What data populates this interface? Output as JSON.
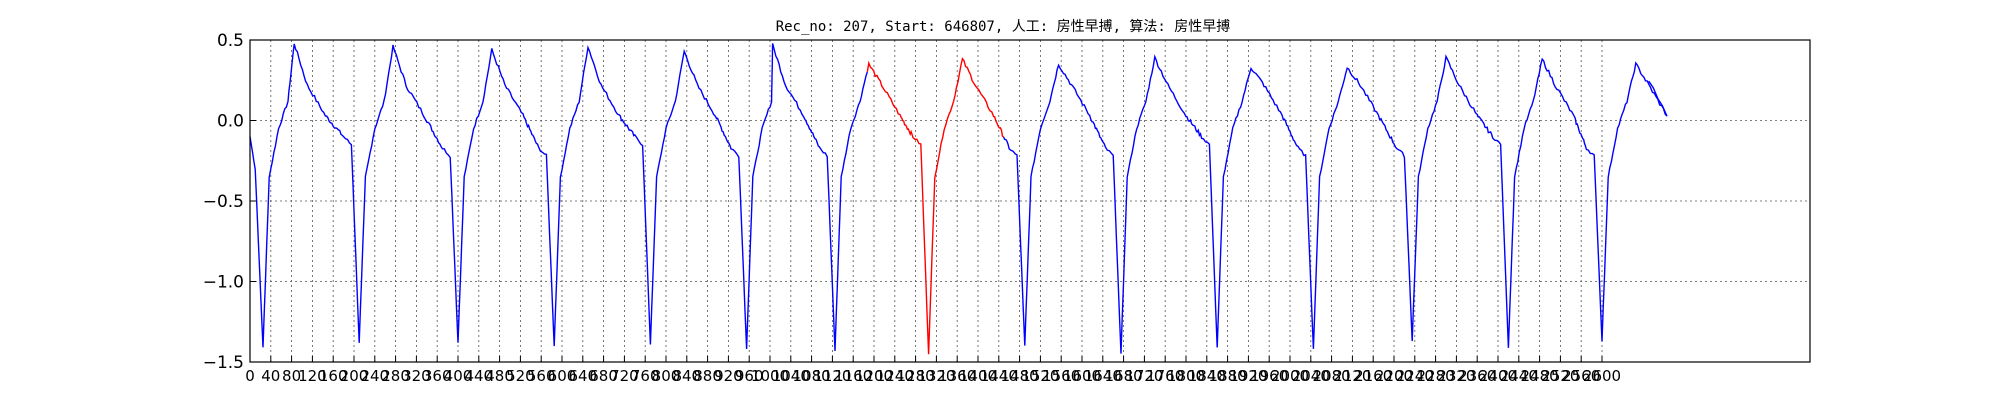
{
  "chart_data": {
    "type": "line",
    "title": "Rec_no: 207, Start: 646807, 人工: 房性早搏, 算法: 房性早搏",
    "xlabel": "",
    "ylabel": "",
    "xlim": [
      0,
      3000
    ],
    "ylim": [
      -1.5,
      0.5
    ],
    "grid": true,
    "y_ticks": [
      "0.5",
      "0.0",
      "−0.5",
      "−1.0",
      "−1.5"
    ],
    "y_tick_values": [
      0.5,
      0.0,
      -0.5,
      -1.0,
      -1.5
    ],
    "x_ticks_spacing": 40,
    "x_ticks_max": 2600,
    "x_tick_labels": [
      "0",
      "40",
      "80",
      "120",
      "160",
      "200",
      "240",
      "280",
      "320",
      "360",
      "400",
      "440",
      "480",
      "520",
      "560",
      "600",
      "640",
      "680",
      "720",
      "760",
      "800",
      "840",
      "880",
      "920",
      "960",
      "1000",
      "1040",
      "1080",
      "1120",
      "1160",
      "1200",
      "1240",
      "1280",
      "1320",
      "1360",
      "1400",
      "1440",
      "1480",
      "1520",
      "1560",
      "1600",
      "1640",
      "1680",
      "1720",
      "1760",
      "1800",
      "1840",
      "1880",
      "1920",
      "1960",
      "2000",
      "2040",
      "2080",
      "2120",
      "2160",
      "2200",
      "2240",
      "2280",
      "2320",
      "2360",
      "2400",
      "2440",
      "2480",
      "2520",
      "2560",
      "2600"
    ],
    "line_colors": {
      "normal": "#0000ff",
      "highlight": "#ff0000"
    },
    "highlight_x_range": [
      1190,
      1450
    ],
    "beats": [
      {
        "r_x": 25,
        "r_y": -1.41,
        "peak_x": 85,
        "peak_y": 0.48
      },
      {
        "r_x": 210,
        "r_y": -1.38,
        "peak_x": 275,
        "peak_y": 0.46
      },
      {
        "r_x": 400,
        "r_y": -1.38,
        "peak_x": 465,
        "peak_y": 0.44
      },
      {
        "r_x": 585,
        "r_y": -1.4,
        "peak_x": 650,
        "peak_y": 0.46
      },
      {
        "r_x": 770,
        "r_y": -1.39,
        "peak_x": 835,
        "peak_y": 0.43
      },
      {
        "r_x": 955,
        "r_y": -1.42,
        "peak_x": 1005,
        "peak_y": 0.47
      },
      {
        "r_x": 1125,
        "r_y": -1.43,
        "peak_x": 1190,
        "peak_y": 0.35
      },
      {
        "r_x": 1305,
        "r_y": -1.45,
        "peak_x": 1370,
        "peak_y": 0.38
      },
      {
        "r_x": 1490,
        "r_y": -1.4,
        "peak_x": 1555,
        "peak_y": 0.35
      },
      {
        "r_x": 1675,
        "r_y": -1.45,
        "peak_x": 1740,
        "peak_y": 0.39
      },
      {
        "r_x": 1860,
        "r_y": -1.41,
        "peak_x": 1925,
        "peak_y": 0.33
      },
      {
        "r_x": 2045,
        "r_y": -1.42,
        "peak_x": 2110,
        "peak_y": 0.33
      },
      {
        "r_x": 2235,
        "r_y": -1.37,
        "peak_x": 2300,
        "peak_y": 0.39
      },
      {
        "r_x": 2420,
        "r_y": -1.41,
        "peak_x": 2485,
        "peak_y": 0.38
      },
      {
        "r_x": 2600,
        "r_y": -1.37,
        "peak_x": 2665,
        "peak_y": 0.35
      }
    ],
    "series_start": {
      "x": 0,
      "y": -0.1
    },
    "series_end": {
      "x": 2690,
      "y": 0.25
    }
  }
}
